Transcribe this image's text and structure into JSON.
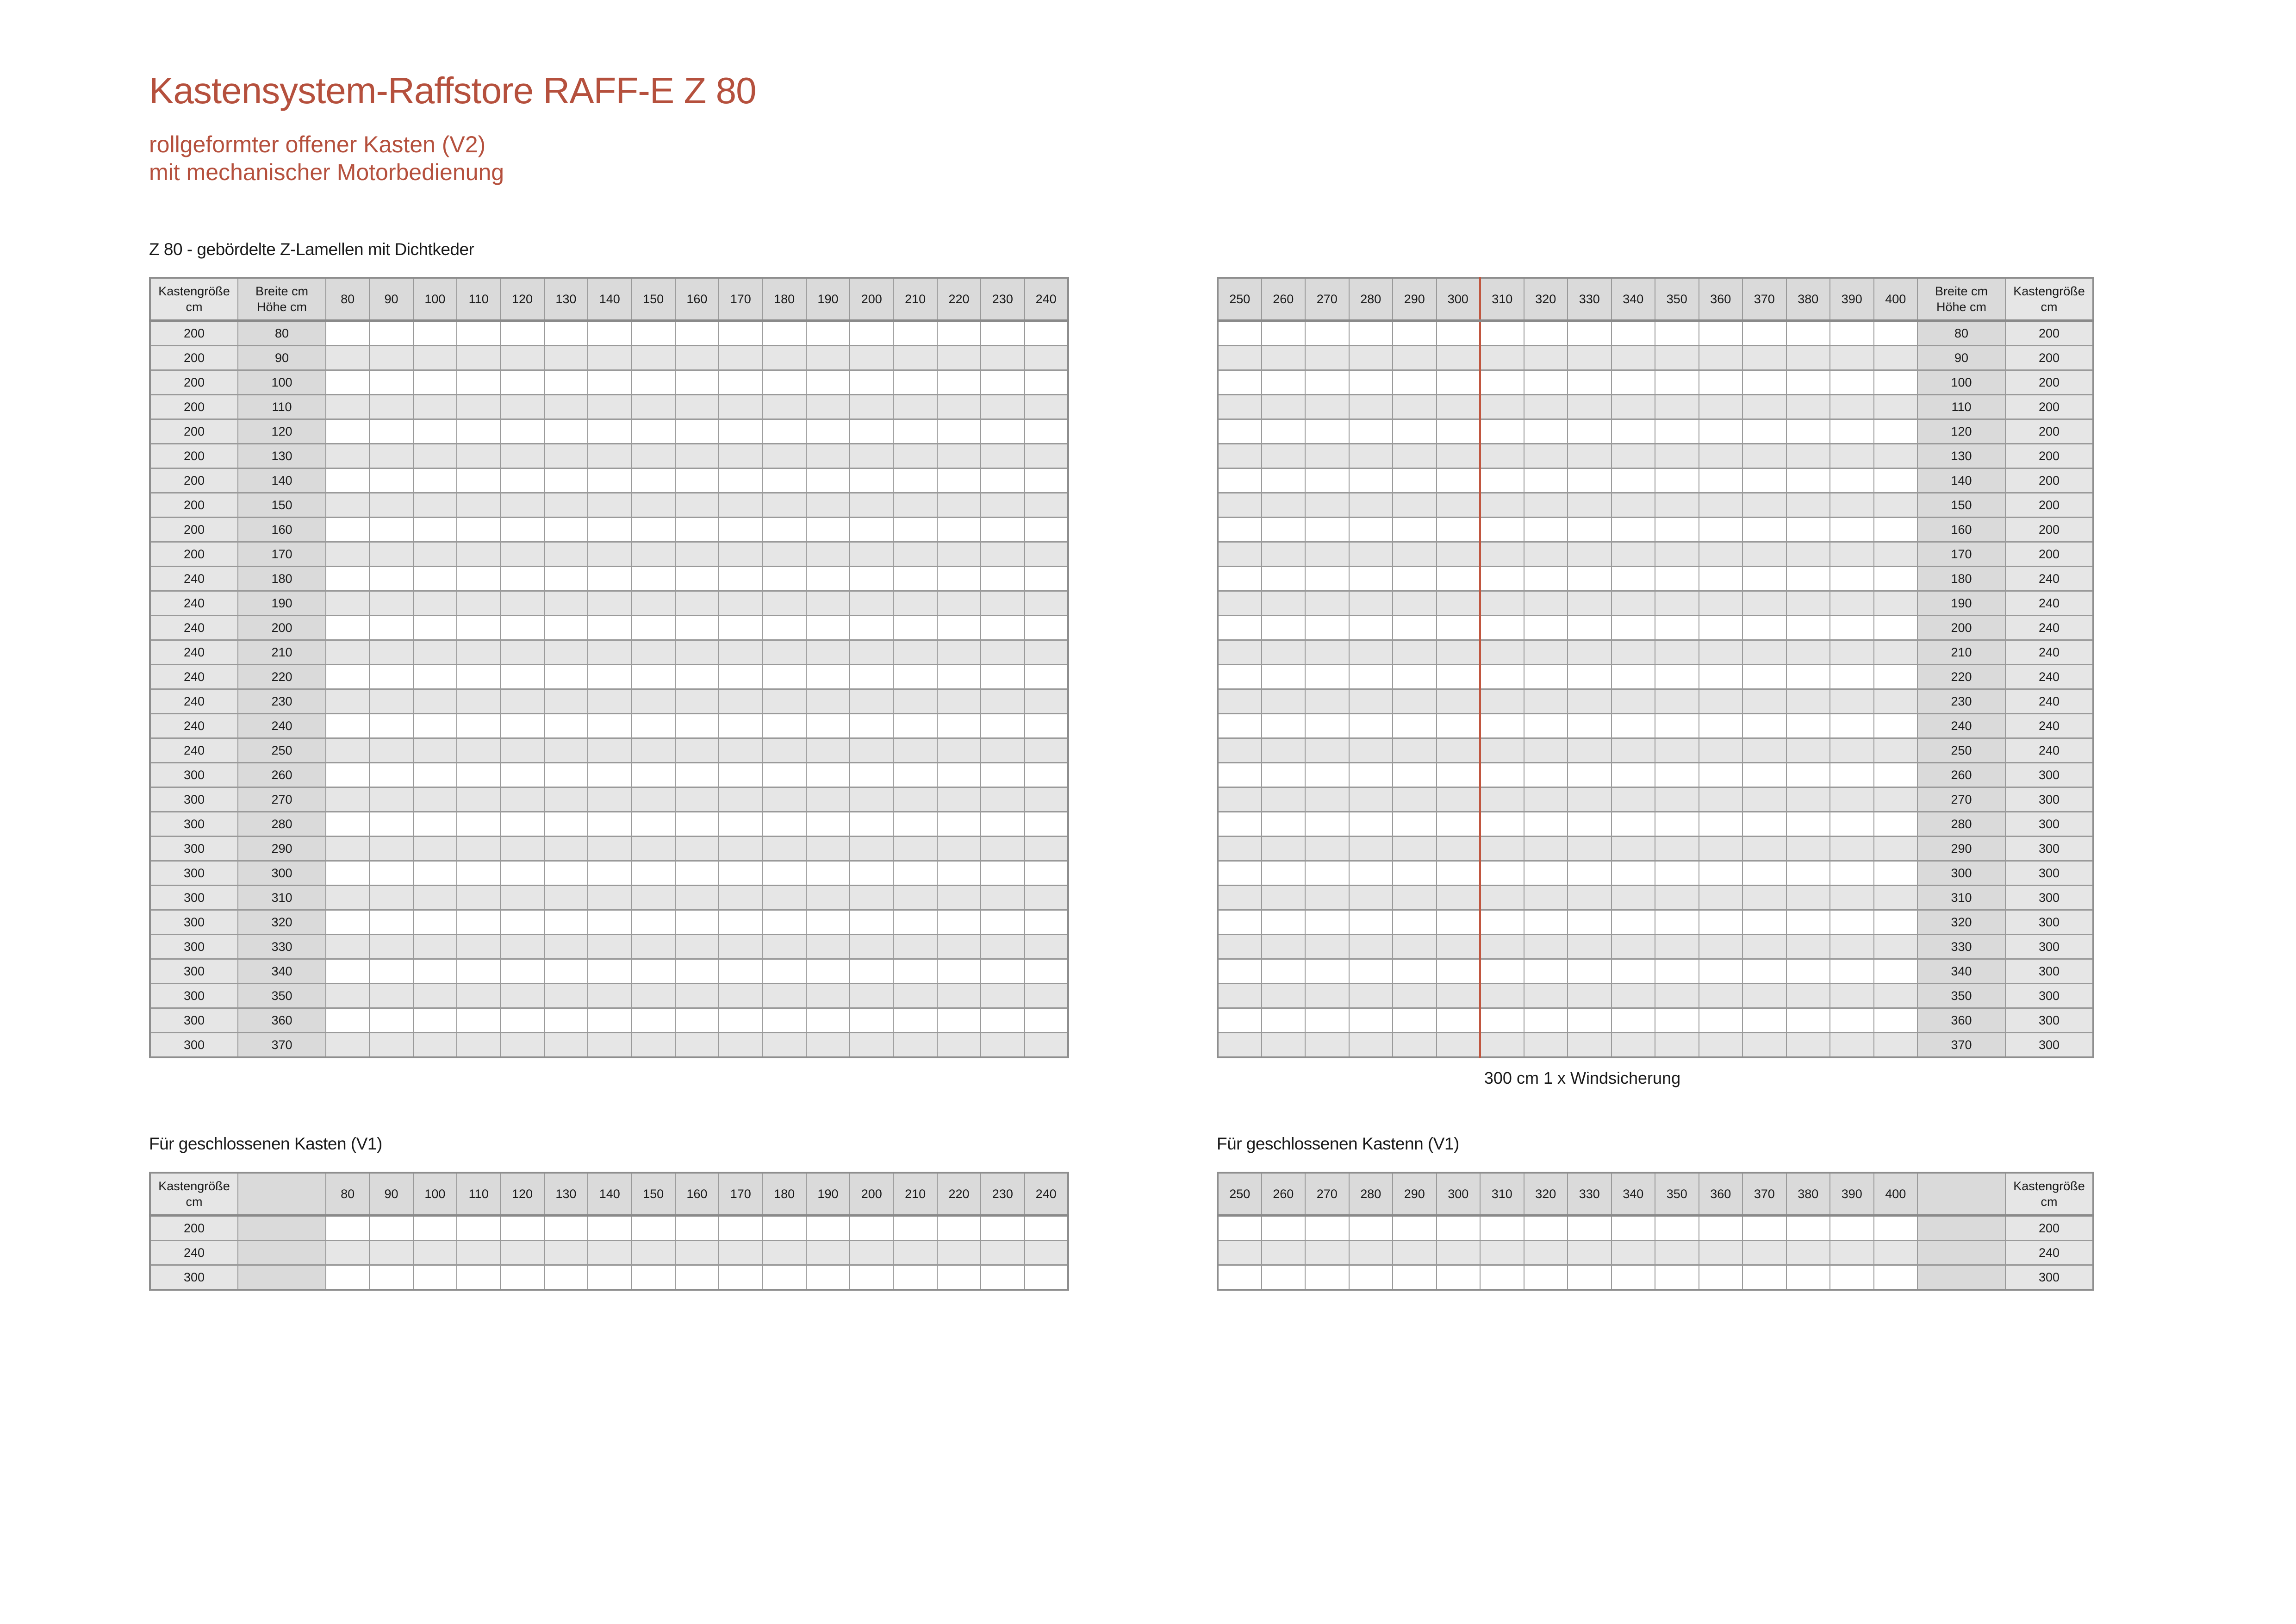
{
  "header": {
    "title": "Kastensystem-Raffstore RAFF-E Z 80",
    "subtitle_line1": "rollgeformter offener Kasten (V2)",
    "subtitle_line2": "mit mechanischer Motorbedienung"
  },
  "colors": {
    "accent": "#b5503d",
    "header_gray": "#dadada",
    "row_gray": "#e6e6e6",
    "border": "#8e8e8e"
  },
  "open_box": {
    "label": "Z 80 - gebördelte Z-Lamellen mit Dichtkeder",
    "kasten_header": [
      "Kastengröße",
      "cm"
    ],
    "breite_header": [
      "Breite cm",
      "Höhe cm"
    ],
    "left_widths": [
      80,
      90,
      100,
      110,
      120,
      130,
      140,
      150,
      160,
      170,
      180,
      190,
      200,
      210,
      220,
      230,
      240
    ],
    "right_widths": [
      250,
      260,
      270,
      280,
      290,
      300,
      310,
      320,
      330,
      340,
      350,
      360,
      370,
      380,
      390,
      400
    ],
    "rows": [
      {
        "hoehe": "80",
        "kasten": "200"
      },
      {
        "hoehe": "90",
        "kasten": "200"
      },
      {
        "hoehe": "100",
        "kasten": "200"
      },
      {
        "hoehe": "110",
        "kasten": "200"
      },
      {
        "hoehe": "120",
        "kasten": "200"
      },
      {
        "hoehe": "130",
        "kasten": "200"
      },
      {
        "hoehe": "140",
        "kasten": "200"
      },
      {
        "hoehe": "150",
        "kasten": "200"
      },
      {
        "hoehe": "160",
        "kasten": "200"
      },
      {
        "hoehe": "170",
        "kasten": "200"
      },
      {
        "hoehe": "180",
        "kasten": "240"
      },
      {
        "hoehe": "190",
        "kasten": "240"
      },
      {
        "hoehe": "200",
        "kasten": "240"
      },
      {
        "hoehe": "210",
        "kasten": "240"
      },
      {
        "hoehe": "220",
        "kasten": "240"
      },
      {
        "hoehe": "230",
        "kasten": "240"
      },
      {
        "hoehe": "240",
        "kasten": "240"
      },
      {
        "hoehe": "250",
        "kasten": "240"
      },
      {
        "hoehe": "260",
        "kasten": "300"
      },
      {
        "hoehe": "270",
        "kasten": "300"
      },
      {
        "hoehe": "280",
        "kasten": "300"
      },
      {
        "hoehe": "290",
        "kasten": "300"
      },
      {
        "hoehe": "300",
        "kasten": "300"
      },
      {
        "hoehe": "310",
        "kasten": "300"
      },
      {
        "hoehe": "320",
        "kasten": "300"
      },
      {
        "hoehe": "330",
        "kasten": "300"
      },
      {
        "hoehe": "340",
        "kasten": "300"
      },
      {
        "hoehe": "350",
        "kasten": "300"
      },
      {
        "hoehe": "360",
        "kasten": "300"
      },
      {
        "hoehe": "370",
        "kasten": "300"
      }
    ],
    "windsicherung_note": "300 cm 1 x Windsicherung"
  },
  "closed_box": {
    "label_left": "Für geschlossenen Kasten (V1)",
    "label_right": "Für geschlossenen Kastenn (V1)",
    "kasten_rows": [
      "200",
      "240",
      "300"
    ]
  }
}
